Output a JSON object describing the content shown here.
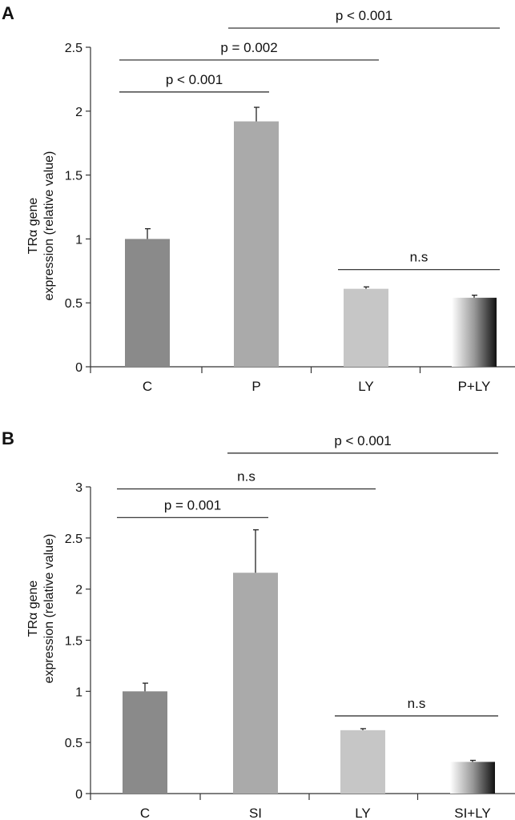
{
  "chart_data": [
    {
      "panel": "A",
      "type": "bar",
      "title": "",
      "ylabel": [
        "TRα gene",
        "expression (relative value)"
      ],
      "xlabel": "",
      "categories": [
        "C",
        "P",
        "LY",
        "P+LY"
      ],
      "values": [
        1.0,
        1.92,
        0.61,
        0.54
      ],
      "errors": [
        0.08,
        0.11,
        0.015,
        0.02
      ],
      "bar_styles": [
        "dark",
        "medium",
        "light",
        "gradient"
      ],
      "ylim": [
        0,
        2.5
      ],
      "yticks": [
        0,
        0.5,
        1,
        1.5,
        2,
        2.5
      ],
      "ytick_labels": [
        "0",
        "0.5",
        "1",
        "1.5",
        "2",
        "2.5"
      ],
      "grid": false,
      "annotations": [
        {
          "from": 0,
          "to": 1,
          "y": 2.15,
          "label": "p < 0.001"
        },
        {
          "from": 0,
          "to": 2,
          "y": 2.4,
          "label": "p = 0.002"
        },
        {
          "from": 1,
          "to": 3,
          "y": 2.65,
          "label": "p < 0.001"
        },
        {
          "from": 2,
          "to": 3,
          "y": 0.76,
          "label": "n.s"
        }
      ]
    },
    {
      "panel": "B",
      "type": "bar",
      "title": "",
      "ylabel": [
        "TRα gene",
        "expression (relative value)"
      ],
      "xlabel": "",
      "categories": [
        "C",
        "SI",
        "LY",
        "SI+LY"
      ],
      "values": [
        1.0,
        2.16,
        0.62,
        0.31
      ],
      "errors": [
        0.08,
        0.42,
        0.015,
        0.015
      ],
      "bar_styles": [
        "dark",
        "medium",
        "light",
        "gradient"
      ],
      "ylim": [
        0,
        3
      ],
      "yticks": [
        0,
        0.5,
        1,
        1.5,
        2,
        2.5,
        3
      ],
      "ytick_labels": [
        "0",
        "0.5",
        "1",
        "1.5",
        "2",
        "2.5",
        "3"
      ],
      "grid": false,
      "annotations": [
        {
          "from": 0,
          "to": 1,
          "y": 2.7,
          "label": "p = 0.001"
        },
        {
          "from": 0,
          "to": 2,
          "y": 2.98,
          "label": "n.s"
        },
        {
          "from": 1,
          "to": 3,
          "y": 3.33,
          "label": "p < 0.001"
        },
        {
          "from": 2,
          "to": 3,
          "y": 0.76,
          "label": "n.s"
        }
      ]
    }
  ],
  "colors": {
    "dark": "#8a8a8a",
    "medium": "#aaaaaa",
    "light": "#c6c6c6",
    "axis": "#333333"
  }
}
